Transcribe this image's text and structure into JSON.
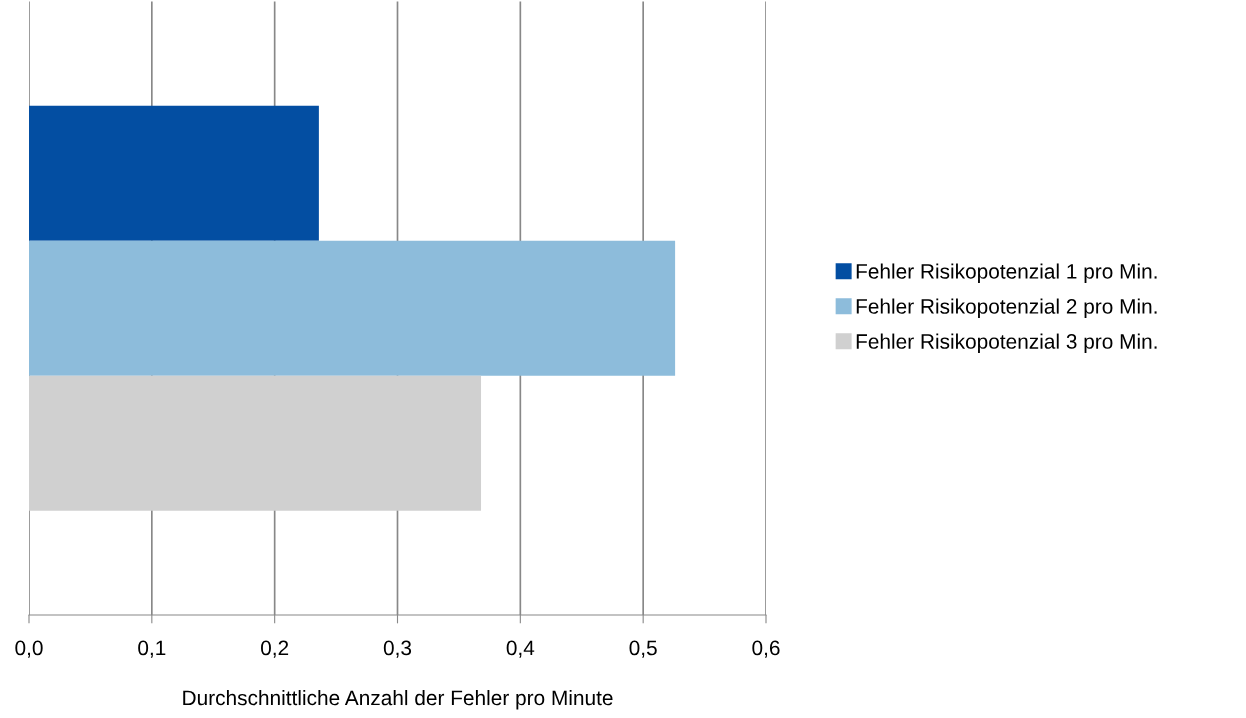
{
  "chart_data": {
    "type": "bar",
    "orientation": "horizontal",
    "categories": [
      null
    ],
    "series": [
      {
        "name": "Fehler Risikopotenzial 1 pro Min.",
        "color": "#034ea2",
        "values": [
          0.236
        ]
      },
      {
        "name": "Fehler Risikopotenzial 2 pro Min.",
        "color": "#8dbcdb",
        "values": [
          0.526
        ]
      },
      {
        "name": "Fehler Risikopotenzial 3 pro Min.",
        "color": "#d0d0d0",
        "values": [
          0.368
        ]
      }
    ],
    "xlabel": "Durchschnittliche Anzahl der Fehler pro Minute",
    "xlim": [
      0,
      0.6
    ],
    "xticks": [
      {
        "value": 0,
        "label": "0,0"
      },
      {
        "value": 0.1,
        "label": "0,1"
      },
      {
        "value": 0.2,
        "label": "0,2"
      },
      {
        "value": 0.3,
        "label": "0,3"
      },
      {
        "value": 0.4,
        "label": "0,4"
      },
      {
        "value": 0.5,
        "label": "0,5"
      },
      {
        "value": 0.6,
        "label": "0,6"
      }
    ],
    "grid": "x",
    "legend": "right"
  }
}
